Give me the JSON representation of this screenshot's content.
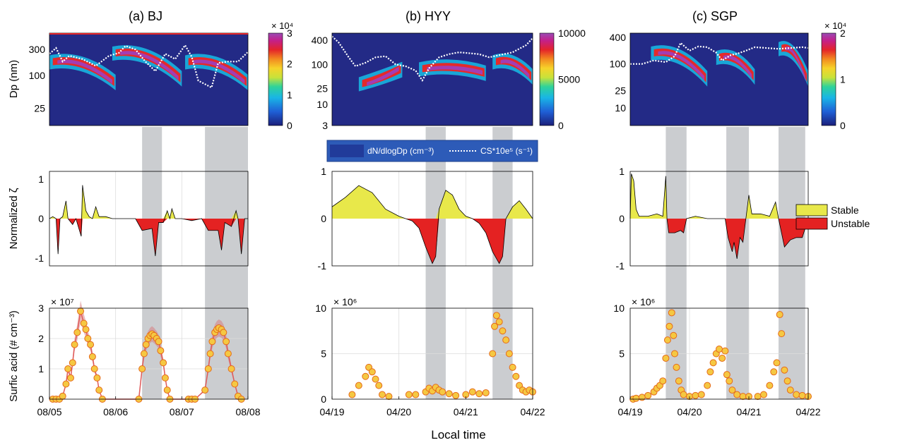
{
  "figure": {
    "xlabel_common": "Local time",
    "colors": {
      "stable": "#e8e84a",
      "unstable": "#e42222",
      "shade": "#b9bcc0",
      "cs_line": "#ffffff",
      "sa_marker_fill": "#f5c842",
      "sa_marker_edge": "#e56a1a",
      "sa_line": "#e05a5a",
      "sa_band": "#d98080"
    },
    "legend_stability": {
      "stable": "Stable",
      "unstable": "Unstable",
      "position": "right of panel (c) middle row"
    },
    "legend_dndp": {
      "dn_label": "dN/dlogDp (cm⁻³)",
      "cs_label": "CS*10e⁵ (s⁻¹)"
    }
  },
  "chart_data": [
    {
      "site": "BJ",
      "title": "(a) BJ",
      "type": "heatmap",
      "ylabel_size": "Dp (nm)",
      "size_yticks": [
        "25",
        "100",
        "300"
      ],
      "colorbar_ticks": [
        "0",
        "1",
        "2",
        "3"
      ],
      "colorbar_exponent": "× 10⁴",
      "colorbar_range": [
        0,
        30000
      ],
      "ylabel_xi": "Normalized ζ",
      "xi_yticks": [
        "-1",
        "0",
        "1"
      ],
      "xi_ylim": [
        -1.2,
        1.2
      ],
      "ylabel_sa": "Surfic acid (# cm⁻³)",
      "sa_yticks": [
        "0",
        "1",
        "2",
        "3"
      ],
      "sa_exponent": "× 10⁷",
      "sa_ylim": [
        0,
        30000000
      ],
      "xticks": [
        "08/05",
        "08/06",
        "08/07",
        "08/08"
      ],
      "shaded_days": [
        [
          1.4,
          1.7
        ],
        [
          2.35,
          3.0
        ]
      ],
      "cs_line": [
        [
          0.0,
          250
        ],
        [
          0.1,
          320
        ],
        [
          0.2,
          180
        ],
        [
          0.3,
          230
        ],
        [
          0.5,
          200
        ],
        [
          0.7,
          150
        ],
        [
          0.9,
          230
        ],
        [
          1.05,
          260
        ],
        [
          1.15,
          350
        ],
        [
          1.3,
          300
        ],
        [
          1.45,
          180
        ],
        [
          1.6,
          120
        ],
        [
          1.75,
          250
        ],
        [
          1.9,
          200
        ],
        [
          2.05,
          360
        ],
        [
          2.15,
          220
        ],
        [
          2.25,
          80
        ],
        [
          2.45,
          60
        ],
        [
          2.55,
          170
        ],
        [
          2.7,
          180
        ],
        [
          2.85,
          180
        ],
        [
          3.0,
          270
        ]
      ],
      "xi": [
        [
          0.0,
          0.0
        ],
        [
          0.05,
          0.05
        ],
        [
          0.1,
          0.0
        ],
        [
          0.13,
          -0.9
        ],
        [
          0.16,
          0.0
        ],
        [
          0.2,
          0.05
        ],
        [
          0.25,
          0.45
        ],
        [
          0.28,
          0.0
        ],
        [
          0.35,
          -0.15
        ],
        [
          0.4,
          0.0
        ],
        [
          0.48,
          -0.45
        ],
        [
          0.5,
          0.85
        ],
        [
          0.55,
          0.2
        ],
        [
          0.6,
          0.05
        ],
        [
          0.65,
          0.0
        ],
        [
          0.7,
          0.3
        ],
        [
          0.75,
          0.05
        ],
        [
          0.85,
          0.05
        ],
        [
          0.95,
          0.0
        ],
        [
          1.05,
          0.0
        ],
        [
          1.3,
          0.0
        ],
        [
          1.4,
          -0.3
        ],
        [
          1.55,
          -0.25
        ],
        [
          1.6,
          -0.95
        ],
        [
          1.65,
          -0.1
        ],
        [
          1.72,
          -0.1
        ],
        [
          1.78,
          0.2
        ],
        [
          1.82,
          0.0
        ],
        [
          1.85,
          0.25
        ],
        [
          1.9,
          0.0
        ],
        [
          2.0,
          0.0
        ],
        [
          2.15,
          -0.05
        ],
        [
          2.3,
          0.0
        ],
        [
          2.4,
          -0.3
        ],
        [
          2.55,
          -0.3
        ],
        [
          2.6,
          -0.8
        ],
        [
          2.65,
          -0.1
        ],
        [
          2.75,
          -0.2
        ],
        [
          2.82,
          0.2
        ],
        [
          2.85,
          0.0
        ],
        [
          2.9,
          -0.9
        ],
        [
          2.95,
          0.0
        ],
        [
          3.0,
          0.0
        ]
      ],
      "sa_points": [
        [
          0.05,
          0
        ],
        [
          0.1,
          0
        ],
        [
          0.15,
          0
        ],
        [
          0.2,
          0.1
        ],
        [
          0.25,
          0.5
        ],
        [
          0.28,
          1.0
        ],
        [
          0.32,
          0.7
        ],
        [
          0.35,
          1.2
        ],
        [
          0.38,
          1.8
        ],
        [
          0.42,
          2.2
        ],
        [
          0.47,
          2.9
        ],
        [
          0.52,
          2.5
        ],
        [
          0.55,
          2.3
        ],
        [
          0.58,
          2.0
        ],
        [
          0.62,
          1.8
        ],
        [
          0.65,
          1.4
        ],
        [
          0.68,
          1.0
        ],
        [
          0.72,
          0.7
        ],
        [
          0.75,
          0.3
        ],
        [
          0.8,
          0.0
        ],
        [
          1.35,
          0.0
        ],
        [
          1.4,
          1.0
        ],
        [
          1.43,
          1.5
        ],
        [
          1.46,
          1.8
        ],
        [
          1.49,
          2.0
        ],
        [
          1.52,
          2.1
        ],
        [
          1.55,
          2.15
        ],
        [
          1.58,
          2.1
        ],
        [
          1.62,
          2.0
        ],
        [
          1.65,
          1.9
        ],
        [
          1.68,
          1.6
        ],
        [
          1.72,
          1.2
        ],
        [
          1.75,
          0.7
        ],
        [
          1.78,
          0.3
        ],
        [
          1.82,
          0.0
        ],
        [
          2.1,
          0.0
        ],
        [
          2.15,
          0.0
        ],
        [
          2.2,
          0.0
        ],
        [
          2.35,
          0.3
        ],
        [
          2.4,
          1.0
        ],
        [
          2.43,
          1.5
        ],
        [
          2.46,
          1.9
        ],
        [
          2.5,
          2.2
        ],
        [
          2.53,
          2.3
        ],
        [
          2.56,
          2.35
        ],
        [
          2.6,
          2.3
        ],
        [
          2.63,
          2.2
        ],
        [
          2.67,
          1.9
        ],
        [
          2.7,
          1.5
        ],
        [
          2.75,
          1.0
        ],
        [
          2.8,
          0.5
        ],
        [
          2.85,
          0.1
        ],
        [
          2.9,
          0.0
        ]
      ]
    },
    {
      "site": "HYY",
      "title": "(b) HYY",
      "type": "heatmap",
      "size_yticks": [
        "3",
        "10",
        "25",
        "100",
        "400"
      ],
      "colorbar_ticks": [
        "0",
        "5000",
        "10000"
      ],
      "colorbar_range": [
        0,
        10000
      ],
      "xi_yticks": [
        "-1",
        "0",
        "1"
      ],
      "xi_ylim": [
        -1,
        1
      ],
      "sa_yticks": [
        "0",
        "5",
        "10"
      ],
      "sa_exponent": "× 10⁶",
      "sa_ylim": [
        0,
        10000000
      ],
      "xticks": [
        "04/19",
        "04/20",
        "04/21",
        "04/22"
      ],
      "shaded_days": [
        [
          1.4,
          1.7
        ],
        [
          2.4,
          2.7
        ]
      ],
      "cs_line": [
        [
          0.0,
          500
        ],
        [
          0.1,
          350
        ],
        [
          0.25,
          150
        ],
        [
          0.35,
          90
        ],
        [
          0.5,
          110
        ],
        [
          0.65,
          150
        ],
        [
          0.8,
          160
        ],
        [
          0.95,
          100
        ],
        [
          1.1,
          90
        ],
        [
          1.25,
          70
        ],
        [
          1.35,
          40
        ],
        [
          1.45,
          80
        ],
        [
          1.6,
          150
        ],
        [
          1.75,
          180
        ],
        [
          1.9,
          200
        ],
        [
          2.05,
          190
        ],
        [
          2.2,
          180
        ],
        [
          2.35,
          150
        ],
        [
          2.5,
          170
        ],
        [
          2.7,
          200
        ],
        [
          2.9,
          300
        ],
        [
          3.0,
          450
        ]
      ],
      "xi": [
        [
          0.0,
          0.25
        ],
        [
          0.2,
          0.45
        ],
        [
          0.4,
          0.7
        ],
        [
          0.6,
          0.55
        ],
        [
          0.8,
          0.2
        ],
        [
          1.0,
          0.05
        ],
        [
          1.1,
          0.0
        ],
        [
          1.2,
          -0.05
        ],
        [
          1.3,
          -0.2
        ],
        [
          1.4,
          -0.6
        ],
        [
          1.5,
          -0.95
        ],
        [
          1.55,
          -0.8
        ],
        [
          1.6,
          0.2
        ],
        [
          1.7,
          0.6
        ],
        [
          1.8,
          0.5
        ],
        [
          1.9,
          0.2
        ],
        [
          2.0,
          0.05
        ],
        [
          2.1,
          0.0
        ],
        [
          2.2,
          -0.1
        ],
        [
          2.3,
          -0.3
        ],
        [
          2.4,
          -0.7
        ],
        [
          2.5,
          -0.95
        ],
        [
          2.55,
          -0.8
        ],
        [
          2.6,
          0.0
        ],
        [
          2.7,
          0.25
        ],
        [
          2.8,
          0.38
        ],
        [
          2.9,
          0.2
        ],
        [
          3.0,
          0.0
        ]
      ],
      "sa_points": [
        [
          0.3,
          0.5
        ],
        [
          0.4,
          1.5
        ],
        [
          0.5,
          2.5
        ],
        [
          0.55,
          3.5
        ],
        [
          0.6,
          3.0
        ],
        [
          0.65,
          2.2
        ],
        [
          0.7,
          1.5
        ],
        [
          0.75,
          0.5
        ],
        [
          0.85,
          0.3
        ],
        [
          1.15,
          0.5
        ],
        [
          1.25,
          0.5
        ],
        [
          1.4,
          0.8
        ],
        [
          1.45,
          1.2
        ],
        [
          1.5,
          0.9
        ],
        [
          1.55,
          1.3
        ],
        [
          1.6,
          1.0
        ],
        [
          1.65,
          0.8
        ],
        [
          1.75,
          0.6
        ],
        [
          1.85,
          0.4
        ],
        [
          2.0,
          0.5
        ],
        [
          2.1,
          0.8
        ],
        [
          2.2,
          0.6
        ],
        [
          2.3,
          0.7
        ],
        [
          2.4,
          5.0
        ],
        [
          2.43,
          8.0
        ],
        [
          2.46,
          9.2
        ],
        [
          2.5,
          8.5
        ],
        [
          2.55,
          7.5
        ],
        [
          2.6,
          6.5
        ],
        [
          2.65,
          5.0
        ],
        [
          2.7,
          3.5
        ],
        [
          2.75,
          2.5
        ],
        [
          2.8,
          1.5
        ],
        [
          2.85,
          1.0
        ],
        [
          2.9,
          0.8
        ],
        [
          2.95,
          1.0
        ],
        [
          3.0,
          0.8
        ]
      ]
    },
    {
      "site": "SGP",
      "title": "(c) SGP",
      "type": "heatmap",
      "size_yticks": [
        "10",
        "25",
        "100",
        "400"
      ],
      "colorbar_ticks": [
        "0",
        "1",
        "2"
      ],
      "colorbar_exponent": "× 10⁴",
      "colorbar_range": [
        0,
        20000
      ],
      "xi_yticks": [
        "-1",
        "0",
        "1"
      ],
      "xi_ylim": [
        -1,
        1
      ],
      "sa_yticks": [
        "0",
        "5",
        "10"
      ],
      "sa_exponent": "× 10⁶",
      "sa_ylim": [
        0,
        10000000
      ],
      "xticks": [
        "04/19",
        "04/20",
        "04/21",
        "04/22"
      ],
      "shaded_days": [
        [
          0.6,
          0.95
        ],
        [
          1.62,
          2.0
        ],
        [
          2.5,
          2.95
        ]
      ],
      "cs_line": [
        [
          0.0,
          100
        ],
        [
          0.2,
          100
        ],
        [
          0.4,
          120
        ],
        [
          0.6,
          110
        ],
        [
          0.75,
          150
        ],
        [
          0.85,
          300
        ],
        [
          1.0,
          200
        ],
        [
          1.15,
          250
        ],
        [
          1.3,
          240
        ],
        [
          1.45,
          180
        ],
        [
          1.55,
          120
        ],
        [
          1.7,
          160
        ],
        [
          1.8,
          170
        ],
        [
          1.95,
          200
        ],
        [
          2.1,
          240
        ],
        [
          2.3,
          230
        ],
        [
          2.5,
          220
        ],
        [
          2.7,
          230
        ],
        [
          2.9,
          240
        ],
        [
          3.0,
          230
        ]
      ],
      "xi": [
        [
          0.0,
          0.0
        ],
        [
          0.02,
          0.95
        ],
        [
          0.06,
          0.8
        ],
        [
          0.1,
          0.2
        ],
        [
          0.15,
          0.05
        ],
        [
          0.3,
          0.05
        ],
        [
          0.45,
          0.1
        ],
        [
          0.55,
          0.05
        ],
        [
          0.6,
          0.9
        ],
        [
          0.62,
          0.0
        ],
        [
          0.65,
          -0.3
        ],
        [
          0.75,
          -0.3
        ],
        [
          0.85,
          -0.25
        ],
        [
          0.9,
          -0.3
        ],
        [
          0.95,
          0.0
        ],
        [
          1.1,
          0.05
        ],
        [
          1.3,
          0.0
        ],
        [
          1.5,
          0.0
        ],
        [
          1.6,
          0.0
        ],
        [
          1.65,
          -0.4
        ],
        [
          1.72,
          -0.7
        ],
        [
          1.75,
          -0.5
        ],
        [
          1.8,
          -0.85
        ],
        [
          1.85,
          -0.4
        ],
        [
          1.9,
          -0.5
        ],
        [
          1.95,
          0.0
        ],
        [
          2.0,
          0.5
        ],
        [
          2.05,
          0.1
        ],
        [
          2.2,
          0.1
        ],
        [
          2.35,
          0.05
        ],
        [
          2.45,
          0.35
        ],
        [
          2.5,
          0.0
        ],
        [
          2.55,
          -0.3
        ],
        [
          2.6,
          -0.6
        ],
        [
          2.7,
          -0.45
        ],
        [
          2.8,
          -0.4
        ],
        [
          2.9,
          -0.4
        ],
        [
          2.95,
          -0.2
        ],
        [
          3.0,
          0.0
        ]
      ],
      "sa_points": [
        [
          0.05,
          0.0
        ],
        [
          0.1,
          0.1
        ],
        [
          0.2,
          0.2
        ],
        [
          0.3,
          0.4
        ],
        [
          0.4,
          0.8
        ],
        [
          0.45,
          1.2
        ],
        [
          0.5,
          1.5
        ],
        [
          0.55,
          2.0
        ],
        [
          0.6,
          4.5
        ],
        [
          0.63,
          6.5
        ],
        [
          0.66,
          8.0
        ],
        [
          0.7,
          9.5
        ],
        [
          0.73,
          7.0
        ],
        [
          0.75,
          5.0
        ],
        [
          0.78,
          3.5
        ],
        [
          0.82,
          2.0
        ],
        [
          0.86,
          1.0
        ],
        [
          0.9,
          0.5
        ],
        [
          1.0,
          0.3
        ],
        [
          1.1,
          0.4
        ],
        [
          1.2,
          0.5
        ],
        [
          1.3,
          1.5
        ],
        [
          1.35,
          3.0
        ],
        [
          1.4,
          4.0
        ],
        [
          1.45,
          5.0
        ],
        [
          1.5,
          5.5
        ],
        [
          1.55,
          4.5
        ],
        [
          1.6,
          5.3
        ],
        [
          1.63,
          2.7
        ],
        [
          1.67,
          2.0
        ],
        [
          1.72,
          1.0
        ],
        [
          1.8,
          0.5
        ],
        [
          1.9,
          0.3
        ],
        [
          2.0,
          0.3
        ],
        [
          2.15,
          0.3
        ],
        [
          2.25,
          0.5
        ],
        [
          2.35,
          1.5
        ],
        [
          2.42,
          3.0
        ],
        [
          2.47,
          4.0
        ],
        [
          2.52,
          9.3
        ],
        [
          2.55,
          7.2
        ],
        [
          2.6,
          3.2
        ],
        [
          2.65,
          2.0
        ],
        [
          2.7,
          1.0
        ],
        [
          2.8,
          0.5
        ],
        [
          2.9,
          0.4
        ],
        [
          3.0,
          0.3
        ]
      ]
    }
  ]
}
